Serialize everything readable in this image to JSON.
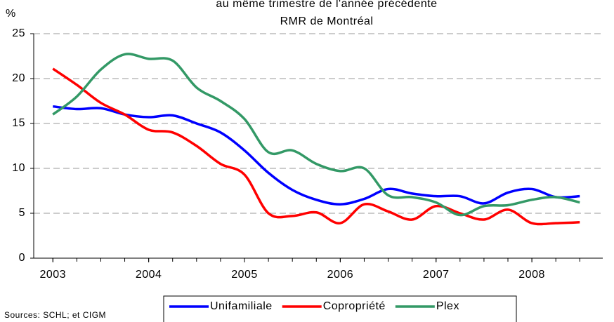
{
  "chart_data": {
    "type": "line",
    "title_lines": [
      "au même trimestre de l'année précédente",
      "RMR de Montréal"
    ],
    "y_label": "%",
    "source": "Sources: SCHL; et CIGM",
    "x": [
      2003,
      2003.25,
      2003.5,
      2003.75,
      2004,
      2004.25,
      2004.5,
      2004.75,
      2005,
      2005.25,
      2005.5,
      2005.75,
      2006,
      2006.25,
      2006.5,
      2006.75,
      2007,
      2007.25,
      2007.5,
      2007.75,
      2008,
      2008.25,
      2008.5
    ],
    "xlim": [
      2002.8,
      2008.74
    ],
    "xticks": [
      2003,
      2004,
      2005,
      2006,
      2007,
      2008
    ],
    "ylim": [
      0,
      25
    ],
    "yticks": [
      0,
      5,
      10,
      15,
      20,
      25
    ],
    "grid": true,
    "legend": "bottom",
    "series": [
      {
        "name": "Unifamiliale",
        "color": "#0000ff",
        "values": [
          16.9,
          16.6,
          16.7,
          16.0,
          15.7,
          15.9,
          15.0,
          14.0,
          12.0,
          9.5,
          7.6,
          6.5,
          6.0,
          6.6,
          7.7,
          7.2,
          6.9,
          6.9,
          6.1,
          7.3,
          7.7,
          6.8,
          6.9
        ]
      },
      {
        "name": "Copropriété",
        "color": "#ff0000",
        "values": [
          21.1,
          19.3,
          17.3,
          16.0,
          14.3,
          14.0,
          12.5,
          10.5,
          9.3,
          5.0,
          4.7,
          5.1,
          3.9,
          6.0,
          5.2,
          4.3,
          5.8,
          5.0,
          4.3,
          5.4,
          3.9,
          3.9,
          4.0
        ]
      },
      {
        "name": "Plex",
        "color": "#339966",
        "values": [
          16.0,
          18.0,
          21.0,
          22.7,
          22.2,
          22.0,
          19.0,
          17.5,
          15.5,
          11.8,
          12.0,
          10.5,
          9.7,
          10.0,
          7.0,
          6.8,
          6.2,
          4.8,
          5.8,
          5.9,
          6.5,
          6.8,
          6.2
        ]
      }
    ]
  }
}
